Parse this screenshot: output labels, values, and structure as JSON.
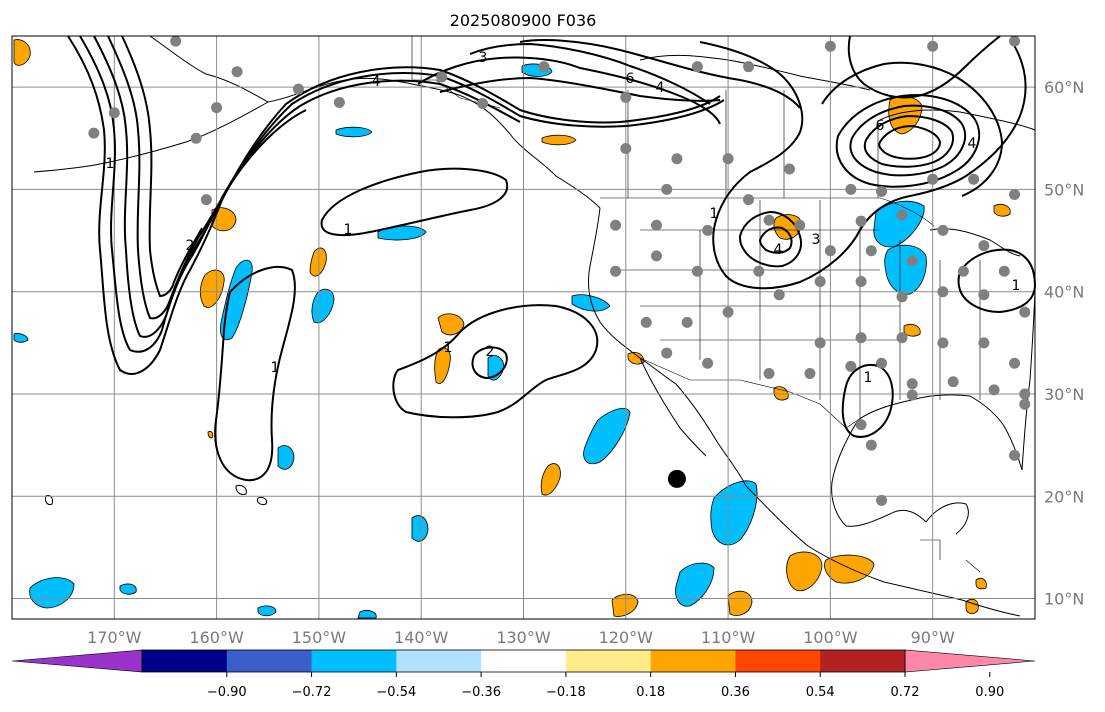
{
  "title": "2025080900 F036",
  "map": {
    "lon_range": [
      -180,
      -80
    ],
    "lat_range": [
      8,
      65
    ],
    "grid": true,
    "lon_labels": [
      "170°W",
      "160°W",
      "150°W",
      "140°W",
      "130°W",
      "120°W",
      "110°W",
      "100°W",
      "90°W"
    ],
    "lat_labels": [
      "60°N",
      "50°N",
      "40°N",
      "30°N",
      "20°N",
      "10°N"
    ],
    "contour_labels": [
      "3",
      "6",
      "4",
      "4",
      "6",
      "4",
      "1",
      "1",
      "4",
      "3",
      "1",
      "1",
      "2",
      "1",
      "1",
      "1",
      "2"
    ],
    "marker": {
      "lon": -115.0,
      "lat": 21.7,
      "label": "",
      "color": "#000000"
    },
    "station_color": "#808080"
  },
  "colorbar": {
    "tick_labels": [
      "−0.90",
      "−0.72",
      "−0.54",
      "−0.36",
      "−0.18",
      "0.18",
      "0.36",
      "0.54",
      "0.72",
      "0.90"
    ],
    "colors": [
      "#9933cc",
      "#00008b",
      "#3a5fcd",
      "#00bfff",
      "#b0e2ff",
      "#ffffff",
      "#ffec8b",
      "#ffa500",
      "#ff4500",
      "#b22222",
      "#ff88aa"
    ]
  }
}
